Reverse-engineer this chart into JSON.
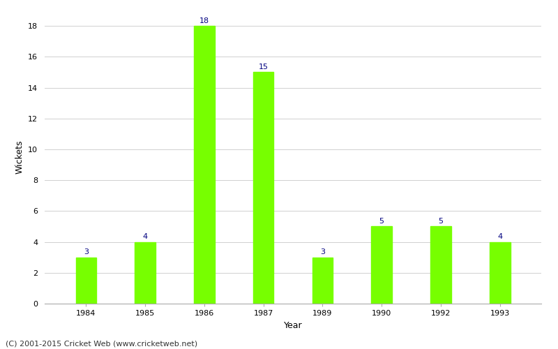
{
  "categories": [
    "1984",
    "1985",
    "1986",
    "1987",
    "1989",
    "1990",
    "1992",
    "1993"
  ],
  "values": [
    3,
    4,
    18,
    15,
    3,
    5,
    5,
    4
  ],
  "bar_color": "#77ff00",
  "bar_edge_color": "#77ff00",
  "xlabel": "Year",
  "ylabel": "Wickets",
  "ylim": [
    0,
    19
  ],
  "yticks": [
    0,
    2,
    4,
    6,
    8,
    10,
    12,
    14,
    16,
    18
  ],
  "label_color": "#000080",
  "label_fontsize": 8,
  "axis_label_fontsize": 9,
  "tick_fontsize": 8,
  "background_color": "#ffffff",
  "grid_color": "#d0d0d0",
  "footer_text": "(C) 2001-2015 Cricket Web (www.cricketweb.net)",
  "footer_fontsize": 8,
  "bar_width": 0.35
}
